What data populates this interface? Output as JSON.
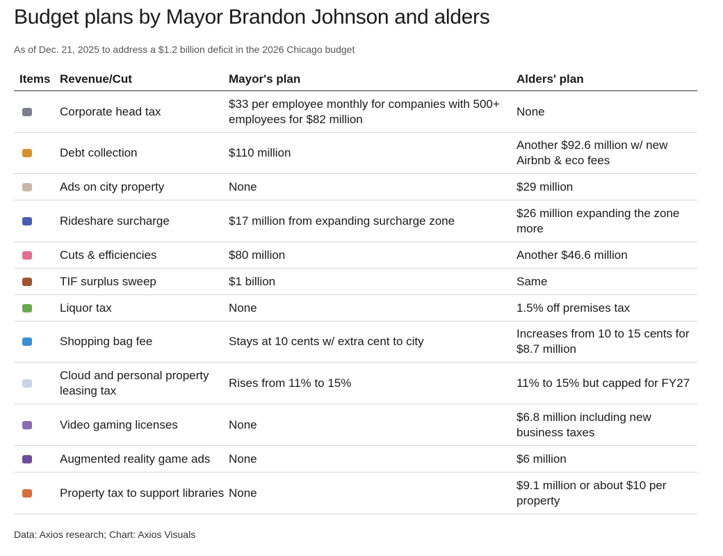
{
  "header": {
    "title": "Budget plans by Mayor Brandon Johnson and alders",
    "subtitle": "As of Dec. 21, 2025 to address a $1.2 billion deficit in the 2026 Chicago budget"
  },
  "table": {
    "columns": [
      "Items",
      "Revenue/Cut",
      "Mayor's plan",
      "Alders' plan"
    ],
    "rows": [
      [
        "Corporate head tax",
        "$33 per employee monthly for companies with 500+ employees for $82 million",
        "None"
      ],
      [
        "Debt collection",
        "$110 million",
        "Another $92.6 million w/ new Airbnb & eco fees"
      ],
      [
        "Ads on city property",
        "None",
        "$29 million"
      ],
      [
        "Rideshare surcharge",
        "$17 million from expanding surcharge zone",
        "$26 million expanding the zone more"
      ],
      [
        "Cuts & efficiencies",
        "$80 million",
        "Another $46.6 million"
      ],
      [
        "TIF surplus sweep",
        "$1 billion",
        "Same"
      ],
      [
        "Liquor tax",
        "None",
        "1.5% off premises tax"
      ],
      [
        "Shopping bag fee",
        "Stays at 10 cents w/ extra cent to city",
        "Increases from 10 to 15 cents for $8.7 million"
      ],
      [
        "Cloud and personal property leasing tax",
        "Rises from 11% to 15%",
        "11% to 15% but capped for FY27"
      ],
      [
        "Video gaming licenses",
        "None",
        "$6.8 million including new business taxes"
      ],
      [
        "Augmented reality game ads",
        "None",
        "$6 million"
      ],
      [
        "Property tax to support libraries",
        "None",
        "$9.1 million or about $10 per property"
      ]
    ]
  },
  "footer": "Data: Axios research; Chart: Axios Visuals"
}
